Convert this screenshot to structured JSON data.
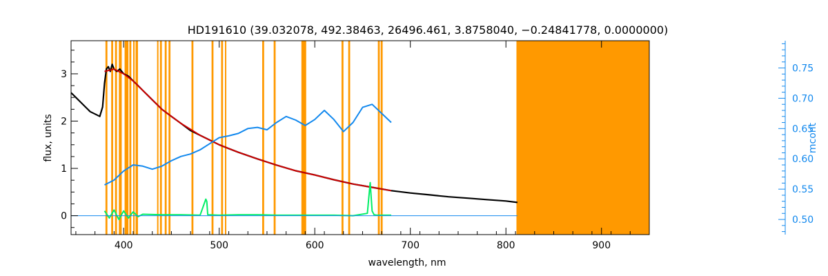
{
  "chart_data": {
    "type": "line",
    "title": "HD191610    (39.032078, 492.38463, 26496.461, 3.8758040, −0.24841778, 0.0000000)",
    "xlabel": "wavelength, nm",
    "ylabel": "flux, units",
    "y2label": "mcont",
    "xlim": [
      345,
      950
    ],
    "ylim": [
      -0.4,
      3.7
    ],
    "y2lim": [
      0.475,
      0.795
    ],
    "xticks": [
      "400",
      "500",
      "600",
      "700",
      "800",
      "900"
    ],
    "yticks": [
      "0",
      "1",
      "2",
      "3"
    ],
    "y2ticks": [
      "0.50",
      "0.55",
      "0.60",
      "0.65",
      "0.70",
      "0.75"
    ],
    "masked_bands": [
      [
        381,
        383
      ],
      [
        387,
        389
      ],
      [
        391,
        393
      ],
      [
        395,
        398
      ],
      [
        401,
        405
      ],
      [
        406,
        408
      ],
      [
        410,
        411.5
      ],
      [
        412.5,
        415
      ],
      [
        435,
        436
      ],
      [
        438,
        440
      ],
      [
        443,
        445
      ],
      [
        447,
        449
      ],
      [
        471,
        473
      ],
      [
        492,
        494
      ],
      [
        502,
        504
      ],
      [
        506,
        507
      ],
      [
        545,
        547
      ],
      [
        557,
        559
      ],
      [
        586,
        591
      ],
      [
        628,
        630
      ],
      [
        635,
        637
      ],
      [
        666,
        668
      ],
      [
        669,
        671
      ],
      [
        811,
        950
      ]
    ],
    "series": [
      {
        "role": "observed",
        "color": "#000000",
        "x": [
          345,
          350,
          355,
          360,
          365,
          370,
          375,
          378,
          380,
          382,
          384,
          386,
          388,
          390,
          393,
          396,
          400,
          405,
          410,
          415,
          420,
          430,
          440,
          450,
          460,
          470,
          480,
          490,
          500,
          510,
          520,
          540,
          560,
          580,
          600,
          620,
          640,
          660,
          680,
          700,
          720,
          740,
          760,
          780,
          800,
          812
        ],
        "y": [
          2.6,
          2.5,
          2.4,
          2.3,
          2.2,
          2.15,
          2.1,
          2.3,
          2.8,
          3.1,
          3.15,
          3.05,
          3.2,
          3.1,
          3.05,
          3.1,
          3.0,
          2.95,
          2.85,
          2.75,
          2.65,
          2.45,
          2.25,
          2.1,
          1.95,
          1.8,
          1.7,
          1.6,
          1.5,
          1.42,
          1.34,
          1.2,
          1.07,
          0.95,
          0.86,
          0.76,
          0.67,
          0.6,
          0.53,
          0.48,
          0.44,
          0.4,
          0.37,
          0.34,
          0.31,
          0.28
        ]
      },
      {
        "role": "model",
        "color": "#cc0000",
        "x": [
          380,
          390,
          400,
          410,
          420,
          440,
          460,
          480,
          500,
          520,
          540,
          560,
          580,
          600,
          620,
          640,
          660,
          680
        ],
        "y": [
          3.05,
          3.1,
          3.0,
          2.85,
          2.65,
          2.25,
          1.95,
          1.7,
          1.5,
          1.34,
          1.2,
          1.07,
          0.95,
          0.86,
          0.76,
          0.67,
          0.6,
          0.53
        ]
      },
      {
        "role": "residual",
        "color": "#00ee66",
        "x": [
          380,
          385,
          390,
          395,
          400,
          405,
          410,
          415,
          420,
          440,
          460,
          480,
          486,
          487,
          488,
          500,
          520,
          540,
          560,
          580,
          600,
          620,
          640,
          655,
          658,
          660,
          662,
          665,
          680
        ],
        "y": [
          0.1,
          -0.05,
          0.12,
          -0.08,
          0.1,
          -0.05,
          0.08,
          -0.02,
          0.03,
          0.02,
          0.02,
          0.01,
          0.35,
          0.3,
          0.02,
          0.01,
          0.02,
          0.02,
          0.01,
          0.01,
          0.01,
          0.01,
          0.0,
          0.05,
          0.7,
          0.1,
          0.02,
          0.01,
          0.01
        ]
      },
      {
        "role": "mcont",
        "axis": "right",
        "color": "#1188ee",
        "x": [
          380,
          390,
          400,
          410,
          420,
          430,
          440,
          450,
          460,
          470,
          480,
          490,
          500,
          510,
          520,
          530,
          540,
          550,
          560,
          570,
          580,
          590,
          600,
          610,
          620,
          630,
          640,
          650,
          660,
          670,
          680
        ],
        "y": [
          0.557,
          0.565,
          0.58,
          0.59,
          0.588,
          0.583,
          0.588,
          0.597,
          0.604,
          0.608,
          0.615,
          0.625,
          0.635,
          0.638,
          0.642,
          0.65,
          0.652,
          0.648,
          0.66,
          0.67,
          0.664,
          0.655,
          0.665,
          0.68,
          0.665,
          0.645,
          0.66,
          0.685,
          0.69,
          0.675,
          0.66
        ]
      },
      {
        "role": "baseline",
        "color": "#1188ee",
        "x": [
          345,
          812
        ],
        "y": [
          0.0,
          0.0
        ]
      }
    ]
  }
}
